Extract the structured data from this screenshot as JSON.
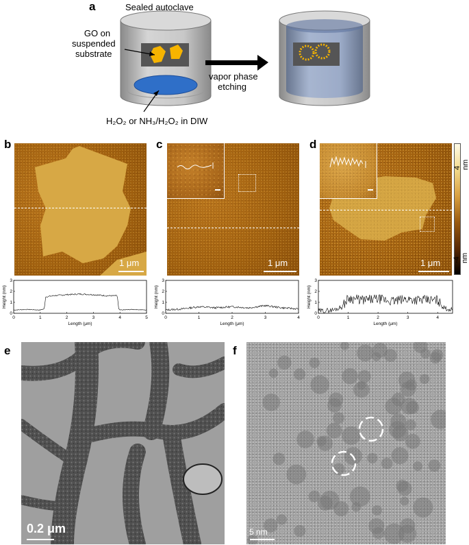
{
  "panel_labels": {
    "a": "a",
    "b": "b",
    "c": "c",
    "d": "d",
    "e": "e",
    "f": "f"
  },
  "schematic": {
    "autoclave_label": "Sealed autoclave",
    "go_label_line1": "GO on",
    "go_label_line2": "suspended",
    "go_label_line3": "substrate",
    "arrow_line1": "vapor phase",
    "arrow_line2": "etching",
    "solution_label": "H₂O₂ or NH₃/H₂O₂ in DIW",
    "colors": {
      "can": "#b9b9b9",
      "liquid": "#2f6fc8",
      "flake": "#f6b400",
      "etched_fill": "#7d93b8"
    }
  },
  "afm": {
    "b_scale": "1 μm",
    "c_scale": "1 μm",
    "d_scale": "1 μm",
    "colorbar_top": "4 nm",
    "colorbar_bottom": "-4 nm"
  },
  "chart_data": [
    {
      "type": "line",
      "ylabel": "Height (nm)",
      "xlabel": "Length (μm)",
      "xlim": [
        0,
        5
      ],
      "ylim": [
        0,
        3
      ],
      "xticks": [
        "0",
        "1",
        "2",
        "3",
        "4",
        "5"
      ],
      "yticks": [
        "0",
        "1",
        "2",
        "3"
      ],
      "x": [
        0,
        0.5,
        1.0,
        1.15,
        1.2,
        1.5,
        2.0,
        2.5,
        3.0,
        3.5,
        3.9,
        3.95,
        4.0,
        4.5,
        5.0
      ],
      "y": [
        0.3,
        0.35,
        0.3,
        0.4,
        1.5,
        1.6,
        1.7,
        1.75,
        1.7,
        1.6,
        1.6,
        0.4,
        0.3,
        0.35,
        0.3
      ]
    },
    {
      "type": "line",
      "ylabel": "Height (nm)",
      "xlabel": "Length (μm)",
      "xlim": [
        0,
        4
      ],
      "ylim": [
        0,
        3
      ],
      "xticks": [
        "0",
        "1",
        "2",
        "3",
        "4"
      ],
      "yticks": [
        "0",
        "1",
        "2",
        "3"
      ],
      "x": [
        0,
        0.5,
        1.0,
        1.5,
        2.0,
        2.5,
        3.0,
        3.5,
        4.0
      ],
      "y": [
        0.3,
        0.4,
        0.6,
        0.5,
        0.6,
        0.5,
        0.7,
        0.5,
        0.4
      ]
    },
    {
      "type": "line",
      "ylabel": "Height (nm)",
      "xlabel": "Length (μm)",
      "xlim": [
        0,
        4.5
      ],
      "ylim": [
        0,
        3
      ],
      "xticks": [
        "0",
        "1",
        "2",
        "3",
        "4"
      ],
      "yticks": [
        "0",
        "1",
        "2",
        "3"
      ],
      "x": [
        0,
        0.5,
        0.8,
        1.0,
        1.5,
        2.0,
        2.5,
        3.0,
        3.5,
        4.0,
        4.2,
        4.5
      ],
      "y": [
        0.2,
        0.3,
        0.6,
        1.4,
        1.2,
        1.3,
        1.1,
        1.3,
        1.2,
        1.2,
        0.5,
        0.3
      ]
    }
  ],
  "tem": {
    "e_scale": "0.2 μm",
    "f_scale": "5 nm"
  }
}
